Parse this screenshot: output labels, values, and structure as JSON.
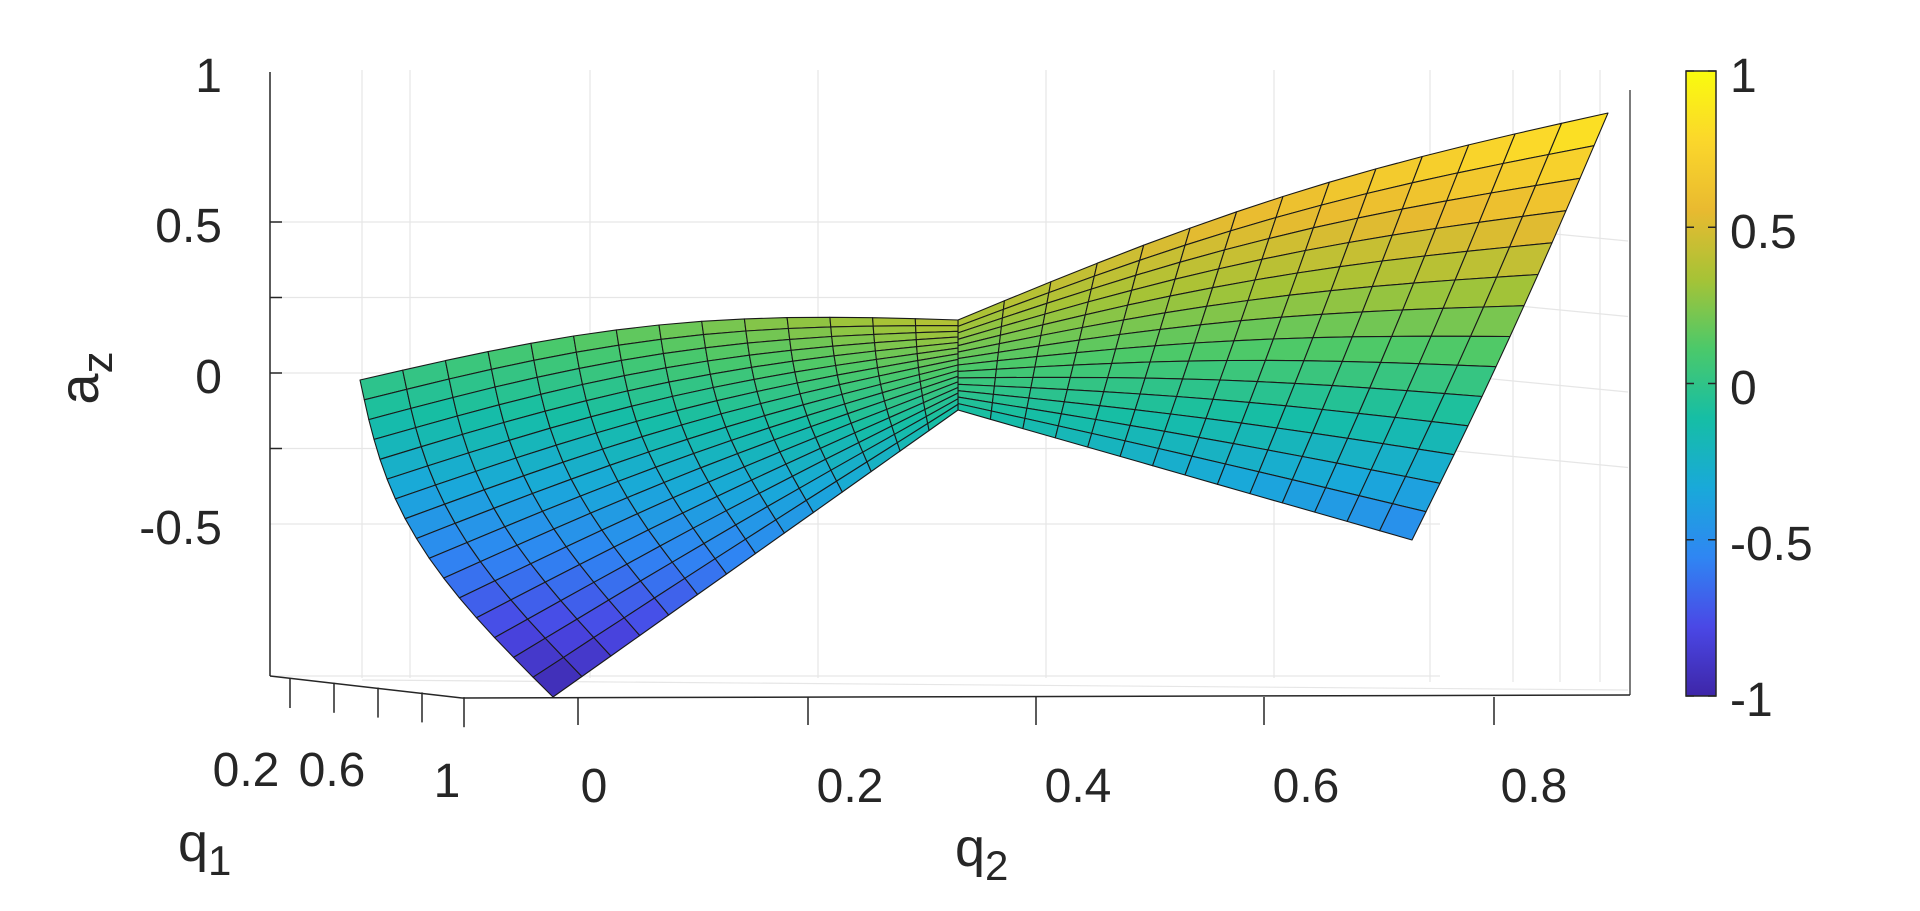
{
  "chart_data": {
    "type": "surface",
    "title": "",
    "colormap": "parula",
    "x_axis": {
      "label_main": "q",
      "label_sub": "2",
      "ticks": [
        "0",
        "0.2",
        "0.4",
        "0.6",
        "0.8"
      ],
      "range": [
        -0.05,
        0.9
      ]
    },
    "y_axis": {
      "label_main": "q",
      "label_sub": "1",
      "ticks": [
        "0.2",
        "0.6",
        "1"
      ],
      "range": [
        0,
        1.2
      ]
    },
    "z_axis": {
      "label_main": "a",
      "label_sub": "z",
      "ticks": [
        "1",
        "0.5",
        "0",
        "-0.5"
      ],
      "range": [
        -1,
        1
      ]
    },
    "colorbar": {
      "ticks": [
        "1",
        "0.5",
        "0",
        "-0.5",
        "-1"
      ],
      "range": [
        -1,
        1
      ],
      "colors": [
        "#3e26a8",
        "#4a48e6",
        "#2f86f3",
        "#19a9d9",
        "#16bea5",
        "#4bc96a",
        "#a6c336",
        "#e9ba30",
        "#fbd72b",
        "#f9fb0e"
      ]
    },
    "grid": true,
    "surface_samples": [
      {
        "q1": 1.0,
        "q2": -0.02,
        "a_z": -1.0
      },
      {
        "q1": 0.0,
        "q2": -0.05,
        "a_z": 0.0
      },
      {
        "q1": 0.0,
        "q2": 0.85,
        "a_z": 0.0
      },
      {
        "q1": 1.0,
        "q2": 0.85,
        "a_z": -0.55
      },
      {
        "q1": 0.0,
        "q2": 0.9,
        "a_z": 0.85
      }
    ]
  }
}
